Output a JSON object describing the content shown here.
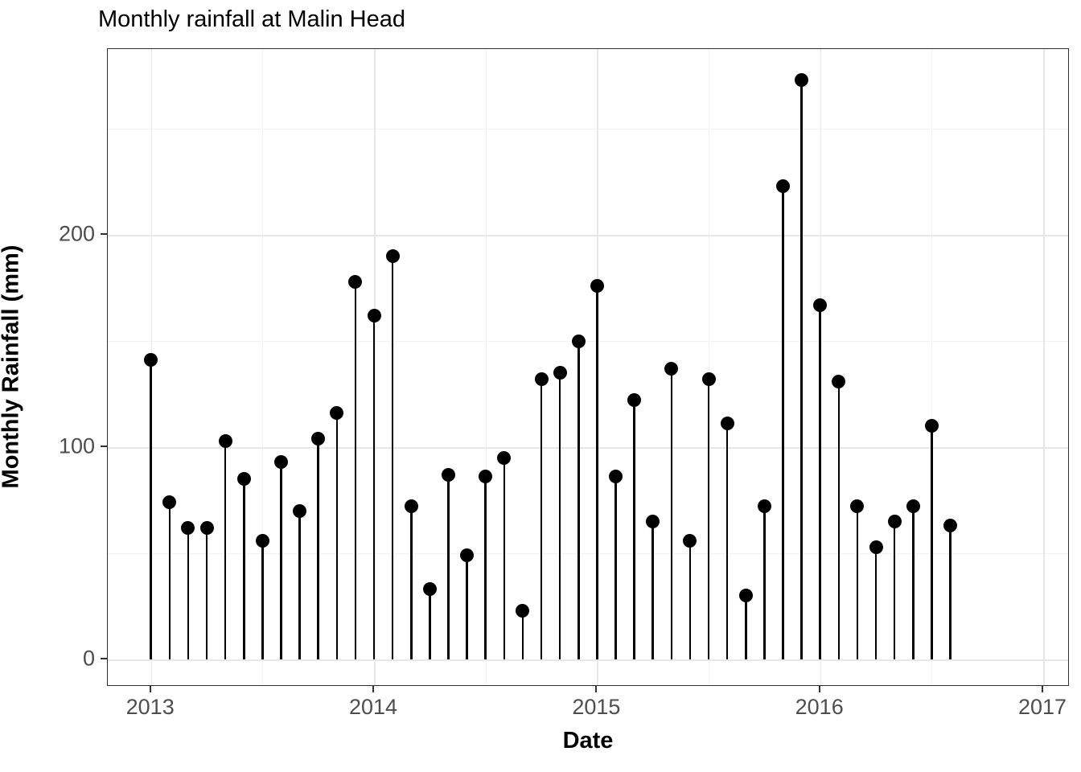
{
  "chart_data": {
    "type": "scatter",
    "style": "lollipop-stem",
    "title": "Monthly rainfall at Malin Head",
    "xlabel": "Date",
    "ylabel": "Monthly Rainfall (mm)",
    "x_ticks": [
      "2013",
      "2014",
      "2015",
      "2016",
      "2017"
    ],
    "y_ticks": [
      "0",
      "100",
      "200"
    ],
    "y_minor_gridlines_mm": [
      50,
      150,
      250
    ],
    "x_minor_gridlines_years": [
      2013.5,
      2014.5,
      2015.5,
      2016.5
    ],
    "xlim_years": [
      2012.81,
      2017.12
    ],
    "ylim": [
      -14,
      288
    ],
    "grid": true,
    "legend": "none",
    "months": [
      "2013-01",
      "2013-02",
      "2013-03",
      "2013-04",
      "2013-05",
      "2013-06",
      "2013-07",
      "2013-08",
      "2013-09",
      "2013-10",
      "2013-11",
      "2013-12",
      "2014-01",
      "2014-02",
      "2014-03",
      "2014-04",
      "2014-05",
      "2014-06",
      "2014-07",
      "2014-08",
      "2014-09",
      "2014-10",
      "2014-11",
      "2014-12",
      "2015-01",
      "2015-02",
      "2015-03",
      "2015-04",
      "2015-05",
      "2015-06",
      "2015-07",
      "2015-08",
      "2015-09",
      "2015-10",
      "2015-11",
      "2015-12",
      "2016-01",
      "2016-02",
      "2016-03",
      "2016-04",
      "2016-05",
      "2016-06",
      "2016-07",
      "2016-08"
    ],
    "values": [
      141,
      74,
      62,
      62,
      103,
      85,
      56,
      93,
      70,
      104,
      116,
      178,
      162,
      190,
      72,
      33,
      87,
      49,
      86,
      95,
      23,
      132,
      135,
      150,
      176,
      86,
      122,
      65,
      137,
      56,
      132,
      111,
      30,
      72,
      223,
      273,
      167,
      131,
      72,
      53,
      65,
      72,
      110,
      63
    ],
    "colors": {
      "point": "#000000",
      "stem": "#000000",
      "panel_background": "#ffffff",
      "panel_border": "#2f2f2f",
      "grid_major": "#e7e7e7",
      "grid_minor": "#f2f2f2",
      "tick_label": "#4d4d4d",
      "title_text": "#000000"
    }
  }
}
